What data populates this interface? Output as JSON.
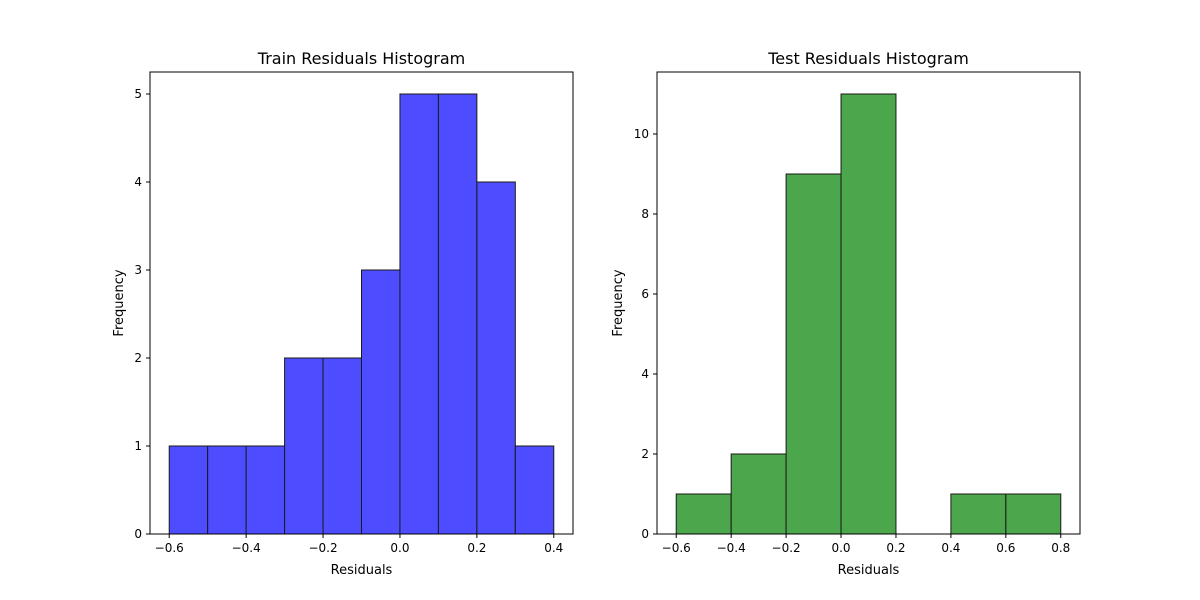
{
  "chart_data": [
    {
      "type": "bar",
      "title": "Train Residuals Histogram",
      "xlabel": "Residuals",
      "ylabel": "Frequency",
      "bin_edges": [
        -0.6,
        -0.5,
        -0.4,
        -0.3,
        -0.2,
        -0.1,
        0.0,
        0.1,
        0.2,
        0.3,
        0.4
      ],
      "values": [
        1,
        1,
        1,
        2,
        2,
        3,
        5,
        5,
        4,
        1
      ],
      "xlim": [
        -0.65,
        0.45
      ],
      "ylim": [
        0,
        5.25
      ],
      "xticks": [
        -0.6,
        -0.4,
        -0.2,
        0.0,
        0.2,
        0.4
      ],
      "xtick_labels": [
        "−0.6",
        "−0.4",
        "−0.2",
        "0.0",
        "0.2",
        "0.4"
      ],
      "yticks": [
        0,
        1,
        2,
        3,
        4,
        5
      ],
      "ytick_labels": [
        "0",
        "1",
        "2",
        "3",
        "4",
        "5"
      ],
      "bar_color": "#4d4dff",
      "edge_color": "#1a1a1a",
      "grid": false
    },
    {
      "type": "bar",
      "title": "Test Residuals Histogram",
      "xlabel": "Residuals",
      "ylabel": "Frequency",
      "bin_edges": [
        -0.6,
        -0.4,
        -0.2,
        0.0,
        0.2,
        0.4,
        0.6,
        0.8
      ],
      "values": [
        1,
        2,
        9,
        11,
        0,
        1,
        1
      ],
      "xlim": [
        -0.67,
        0.87
      ],
      "ylim": [
        0,
        11.55
      ],
      "xticks": [
        -0.6,
        -0.4,
        -0.2,
        0.0,
        0.2,
        0.4,
        0.6,
        0.8
      ],
      "xtick_labels": [
        "−0.6",
        "−0.4",
        "−0.2",
        "0.0",
        "0.2",
        "0.4",
        "0.6",
        "0.8"
      ],
      "yticks": [
        0,
        2,
        4,
        6,
        8,
        10
      ],
      "ytick_labels": [
        "0",
        "2",
        "4",
        "6",
        "8",
        "10"
      ],
      "bar_color": "#4ca64c",
      "edge_color": "#1a1a1a",
      "grid": false
    }
  ]
}
